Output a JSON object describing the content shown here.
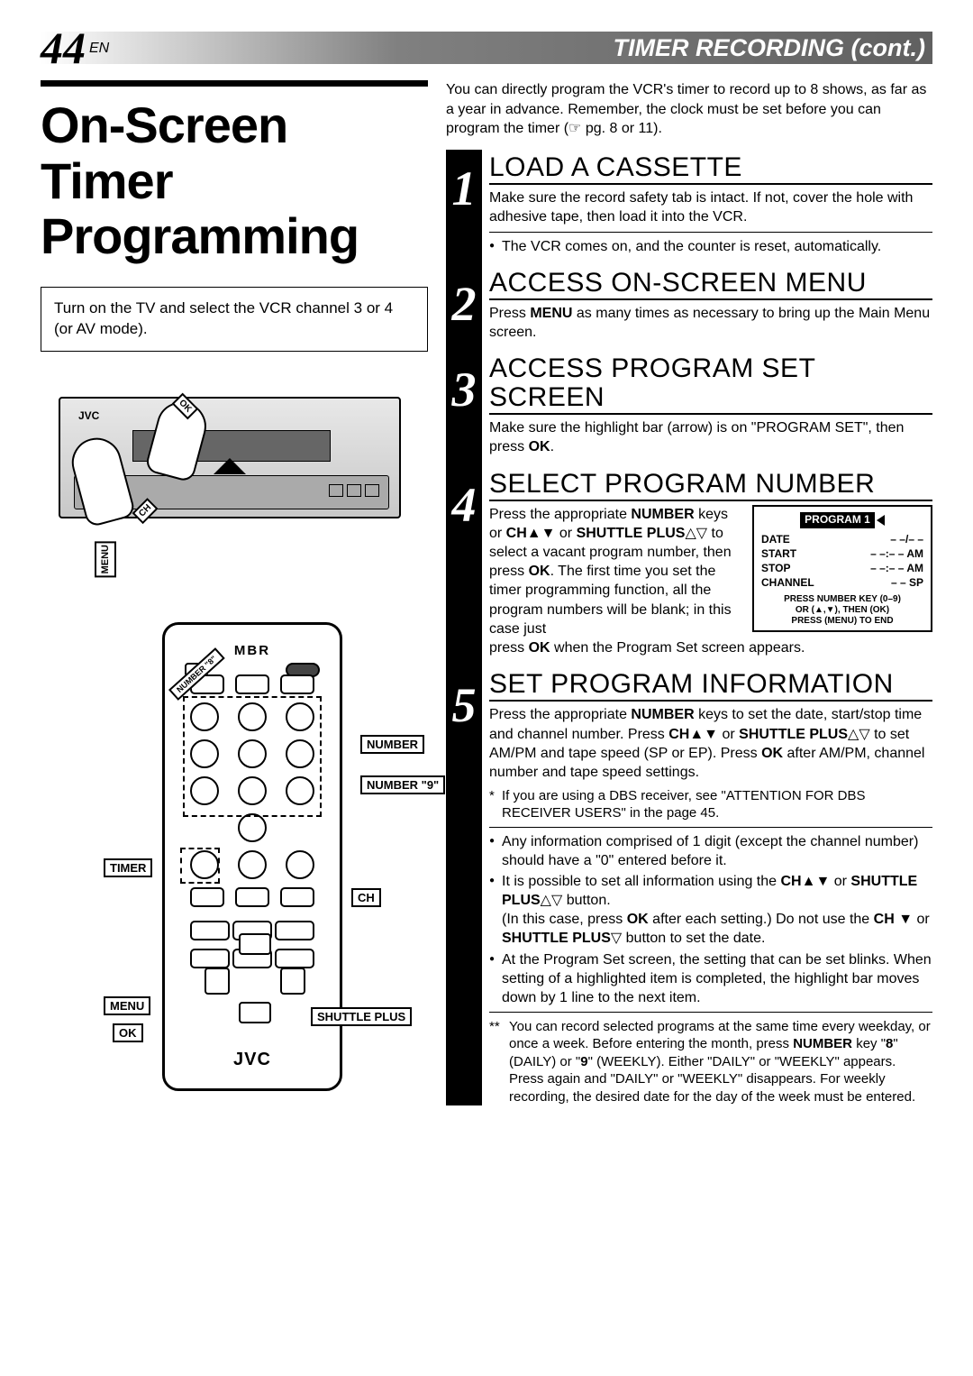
{
  "header": {
    "page_number": "44",
    "page_suffix": "EN",
    "title": "TIMER RECORDING (cont.)"
  },
  "left": {
    "main_title": "On-Screen Timer Programming",
    "note_box": "Turn on the TV and select the VCR channel 3 or 4 (or AV mode).",
    "vcr_labels": {
      "ok": "OK",
      "ch": "CH",
      "menu": "MENU",
      "brand": "JVC"
    },
    "remote": {
      "brand_top": "MBR",
      "labels": {
        "number8": "NUMBER \"8\"",
        "number": "NUMBER",
        "number9": "NUMBER \"9\"",
        "timer": "TIMER",
        "ch": "CH",
        "menu": "MENU",
        "ok": "OK",
        "shuttle": "SHUTTLE PLUS"
      },
      "brand": "JVC"
    }
  },
  "right": {
    "intro": "You can directly program the VCR's timer to record up to 8 shows, as far as a year in advance. Remember, the clock must be set before you can program the timer (☞ pg. 8 or 11).",
    "steps": [
      {
        "num": "1",
        "title": "LOAD A CASSETTE",
        "body": "Make sure the record safety tab is intact. If not, cover the hole with adhesive tape, then load it into the VCR.",
        "bullets": [
          "The VCR comes on, and the counter is reset, automatically."
        ]
      },
      {
        "num": "2",
        "title": "ACCESS ON-SCREEN MENU",
        "body_html": "Press <b>MENU</b> as many times as necessary to bring up the Main Menu screen."
      },
      {
        "num": "3",
        "title": "ACCESS PROGRAM SET SCREEN",
        "body_html": "Make sure the highlight bar (arrow) is on  \"PROGRAM SET\", then press <b>OK</b>."
      },
      {
        "num": "4",
        "title": "SELECT PROGRAM NUMBER",
        "body_html": "Press the appropriate <b>NUMBER</b> keys or <b>CH</b>▲▼ or <b>SHUTTLE PLUS</b>△▽ to select a vacant program number, then press <b>OK</b>. The first time you set the timer programming function, all the program numbers will be blank; in this case just",
        "after_box_html": "press <b>OK</b> when the Program Set screen appears.",
        "program_box": {
          "header": "PROGRAM 1",
          "rows": [
            {
              "l": "DATE",
              "r": "– –/– –"
            },
            {
              "l": "START",
              "r": "– –:– –  AM"
            },
            {
              "l": "STOP",
              "r": "– –:– –  AM"
            },
            {
              "l": "CHANNEL",
              "r": "– –  SP"
            }
          ],
          "footer1": "PRESS NUMBER KEY (0–9)",
          "footer2": "OR (▲,▼), THEN (OK)",
          "footer3": "PRESS (MENU) TO END"
        }
      },
      {
        "num": "5",
        "title": "SET PROGRAM INFORMATION",
        "body_html": "Press the appropriate <b>NUMBER</b> keys to set the date, start/stop time and channel number. Press <b>CH</b>▲▼ or <b>SHUTTLE PLUS</b>△▽ to set AM/PM and tape speed (SP or EP). Press <b>OK</b> after AM/PM, channel number and tape speed settings.",
        "star_note": "If you are using a DBS receiver, see \"ATTENTION FOR DBS RECEIVER USERS\" in the page 45.",
        "bullets_html": [
          "Any information comprised of 1 digit (except the channel number) should have a \"0\" entered before it.",
          "It is possible to set all information using the <b>CH</b>▲▼ or <b>SHUTTLE PLUS</b>△▽ button.<br>(In this case, press <b>OK</b> after each setting.) Do not use the <b>CH</b> ▼ or <b>SHUTTLE PLUS</b>▽ button to set the date.",
          "At the Program Set screen, the setting that can be set blinks. When setting of a highlighted item is completed, the highlight bar moves down by 1 line to the next item."
        ],
        "footnote_html": "You can record selected programs at the same time every weekday, or once a week. Before entering the month, press <b>NUMBER</b> key \"<b>8</b>\" (DAILY) or \"<b>9</b>\" (WEEKLY). Either \"DAILY\" or \"WEEKLY\" appears. Press again and \"DAILY\" or \"WEEKLY\" disappears. For weekly recording, the desired date for the day of the week must be entered."
      }
    ]
  }
}
